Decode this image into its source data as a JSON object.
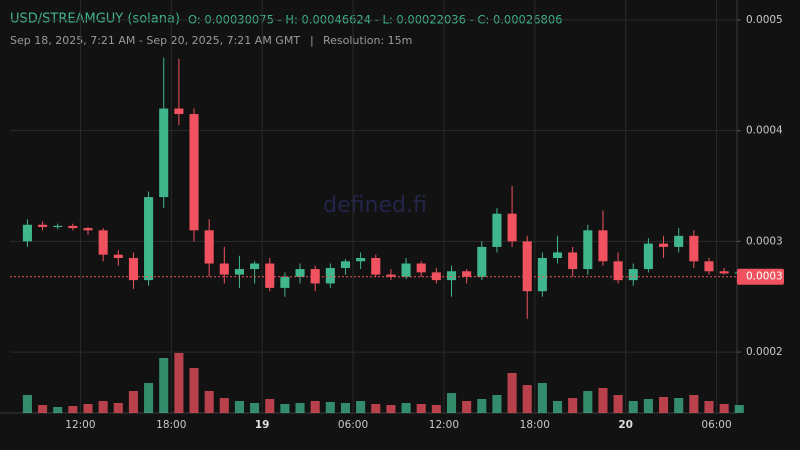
{
  "chart_data": {
    "type": "candlestick",
    "title": "USD/STREAMGUY (solana)",
    "ohlc_text": "O: 0.00030075 - H: 0.00046624 - L: 0.00022036 - C: 0.00026806",
    "range_text": "Sep 18, 2025, 7:21 AM - Sep 20, 2025, 7:21 AM GMT",
    "separator": "|",
    "resolution_text": "Resolution: 15m",
    "watermark": "defined.fi",
    "up_color": "#3fb68b",
    "down_color": "#f0525f",
    "grid": true,
    "x": [
      "2025-09-18T08:00",
      "2025-09-18T09:00",
      "2025-09-18T10:00",
      "2025-09-18T11:00",
      "2025-09-18T12:00",
      "2025-09-18T13:00",
      "2025-09-18T14:00",
      "2025-09-18T15:00",
      "2025-09-18T16:00",
      "2025-09-18T17:00",
      "2025-09-18T18:00",
      "2025-09-18T19:00",
      "2025-09-18T20:00",
      "2025-09-18T21:00",
      "2025-09-18T22:00",
      "2025-09-18T23:00",
      "2025-09-19T00:00",
      "2025-09-19T01:00",
      "2025-09-19T02:00",
      "2025-09-19T03:00",
      "2025-09-19T04:00",
      "2025-09-19T05:00",
      "2025-09-19T06:00",
      "2025-09-19T07:00",
      "2025-09-19T08:00",
      "2025-09-19T09:00",
      "2025-09-19T10:00",
      "2025-09-19T11:00",
      "2025-09-19T12:00",
      "2025-09-19T13:00",
      "2025-09-19T14:00",
      "2025-09-19T15:00",
      "2025-09-19T16:00",
      "2025-09-19T17:00",
      "2025-09-19T18:00",
      "2025-09-19T19:00",
      "2025-09-19T20:00",
      "2025-09-19T21:00",
      "2025-09-19T22:00",
      "2025-09-19T23:00",
      "2025-09-20T00:00",
      "2025-09-20T01:00",
      "2025-09-20T02:00",
      "2025-09-20T03:00",
      "2025-09-20T04:00",
      "2025-09-20T05:00",
      "2025-09-20T06:00",
      "2025-09-20T07:00"
    ],
    "open": [
      0.0003,
      0.000315,
      0.000313,
      0.000314,
      0.000312,
      0.00031,
      0.000288,
      0.000285,
      0.000265,
      0.00034,
      0.00042,
      0.000415,
      0.00031,
      0.00028,
      0.00027,
      0.000275,
      0.00028,
      0.000258,
      0.000268,
      0.000275,
      0.000262,
      0.000276,
      0.000282,
      0.000285,
      0.00027,
      0.000268,
      0.00028,
      0.000272,
      0.000265,
      0.000273,
      0.000268,
      0.000295,
      0.000325,
      0.0003,
      0.000255,
      0.000285,
      0.00029,
      0.000275,
      0.00031,
      0.000282,
      0.000265,
      0.000275,
      0.000298,
      0.000295,
      0.000305,
      0.000282,
      0.000273,
      0.000271
    ],
    "high": [
      0.00032,
      0.000318,
      0.000316,
      0.000316,
      0.000313,
      0.000312,
      0.000292,
      0.00029,
      0.000345,
      0.000466,
      0.000465,
      0.00042,
      0.00032,
      0.000295,
      0.000287,
      0.000282,
      0.000285,
      0.000272,
      0.00028,
      0.000278,
      0.00028,
      0.000284,
      0.00029,
      0.000288,
      0.000275,
      0.000285,
      0.000282,
      0.000276,
      0.000278,
      0.000275,
      0.0003,
      0.00033,
      0.00035,
      0.000305,
      0.00029,
      0.000305,
      0.000295,
      0.000315,
      0.000328,
      0.00029,
      0.00028,
      0.000303,
      0.000305,
      0.000312,
      0.00031,
      0.000285,
      0.000276,
      0.000275
    ],
    "low": [
      0.000295,
      0.00031,
      0.000311,
      0.00031,
      0.000306,
      0.000282,
      0.000278,
      0.000257,
      0.00026,
      0.00033,
      0.000405,
      0.0003,
      0.000268,
      0.000262,
      0.000258,
      0.000262,
      0.000255,
      0.00025,
      0.000262,
      0.000255,
      0.000258,
      0.00027,
      0.000275,
      0.000268,
      0.000265,
      0.000266,
      0.000268,
      0.000262,
      0.00025,
      0.000262,
      0.000265,
      0.00029,
      0.000295,
      0.00023,
      0.00025,
      0.00028,
      0.000268,
      0.00027,
      0.000278,
      0.000262,
      0.00026,
      0.000272,
      0.000285,
      0.00029,
      0.000276,
      0.00027,
      0.00027,
      0.000268
    ],
    "close": [
      0.000315,
      0.000313,
      0.000314,
      0.000312,
      0.00031,
      0.000288,
      0.000285,
      0.000265,
      0.00034,
      0.00042,
      0.000415,
      0.00031,
      0.00028,
      0.00027,
      0.000275,
      0.00028,
      0.000258,
      0.000268,
      0.000275,
      0.000262,
      0.000276,
      0.000282,
      0.000285,
      0.00027,
      0.000268,
      0.00028,
      0.000272,
      0.000265,
      0.000273,
      0.000268,
      0.000295,
      0.000325,
      0.0003,
      0.000255,
      0.000285,
      0.00029,
      0.000275,
      0.00031,
      0.000282,
      0.000265,
      0.000275,
      0.000298,
      0.000295,
      0.000305,
      0.000282,
      0.000273,
      0.000271,
      0.000272
    ],
    "volume": [
      18,
      8,
      6,
      7,
      9,
      12,
      10,
      22,
      30,
      55,
      60,
      45,
      22,
      15,
      12,
      10,
      14,
      9,
      10,
      12,
      11,
      10,
      12,
      9,
      8,
      10,
      9,
      8,
      20,
      12,
      14,
      18,
      40,
      28,
      30,
      12,
      15,
      22,
      25,
      18,
      12,
      14,
      16,
      15,
      18,
      12,
      9,
      8
    ],
    "xlim": [
      "2025-09-18T07:21",
      "2025-09-20T07:21"
    ],
    "xticks": [
      {
        "value": "2025-09-18T12:00",
        "label": "12:00"
      },
      {
        "value": "2025-09-18T18:00",
        "label": "18:00"
      },
      {
        "value": "2025-09-19T00:00",
        "label": "19"
      },
      {
        "value": "2025-09-19T06:00",
        "label": "06:00"
      },
      {
        "value": "2025-09-19T12:00",
        "label": "12:00"
      },
      {
        "value": "2025-09-19T18:00",
        "label": "18:00"
      },
      {
        "value": "2025-09-20T00:00",
        "label": "20"
      },
      {
        "value": "2025-09-20T06:00",
        "label": "06:00"
      }
    ],
    "ylim": [
      0.000145,
      0.000518
    ],
    "yticks": [
      0.0002,
      0.0003,
      0.0004,
      0.0005
    ],
    "last_price": {
      "value": 0.00026806,
      "label": "0.0003"
    }
  }
}
